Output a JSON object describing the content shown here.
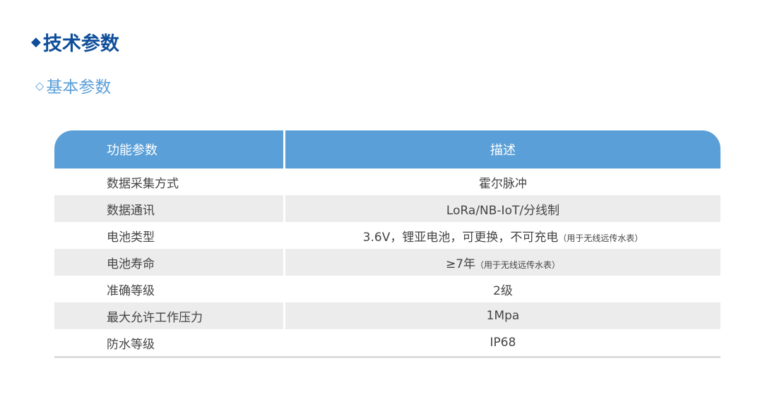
{
  "title": "技术参数",
  "subtitle": "基本参数",
  "table": {
    "headers": [
      "功能参数",
      "描述"
    ],
    "rows": [
      {
        "param": "数据采集方式",
        "desc": "霍尔脉冲",
        "note": ""
      },
      {
        "param": "数据通讯",
        "desc": "LoRa/NB-IoT/分线制",
        "note": ""
      },
      {
        "param": "电池类型",
        "desc": "3.6V，锂亚电池，可更换，不可充电",
        "note": "（用于无线远传水表）"
      },
      {
        "param": "电池寿命",
        "desc": "≥7年",
        "note": "（用于无线远传水表）"
      },
      {
        "param": "准确等级",
        "desc": "2级",
        "note": ""
      },
      {
        "param": "最大允许工作压力",
        "desc": "1Mpa",
        "note": ""
      },
      {
        "param": "防水等级",
        "desc": "IP68",
        "note": ""
      }
    ]
  }
}
